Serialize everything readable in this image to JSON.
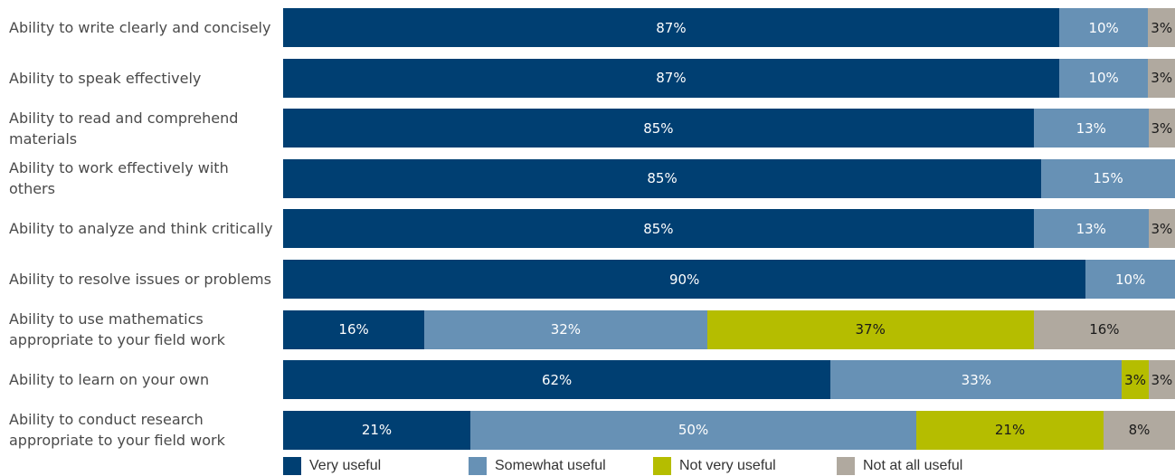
{
  "chart_data": {
    "type": "bar",
    "orientation": "horizontal",
    "stacked": true,
    "categories": [
      "Ability to write clearly and concisely",
      "Ability to speak effectively",
      "Ability to read and comprehend materials",
      "Ability to work effectively with others",
      "Ability to analyze and think critically",
      "Ability to resolve issues or problems",
      "Ability to use mathematics appropriate to your field work",
      "Ability to learn on your own",
      "Ability to conduct research appropriate to your field work"
    ],
    "series": [
      {
        "name": "Very useful",
        "color": "#003f72",
        "label_color": "#ffffff",
        "values": [
          87,
          87,
          85,
          85,
          85,
          90,
          16,
          62,
          21
        ]
      },
      {
        "name": "Somewhat useful",
        "color": "#6791b5",
        "label_color": "#ffffff",
        "values": [
          10,
          10,
          13,
          15,
          13,
          10,
          32,
          33,
          50
        ]
      },
      {
        "name": "Not very useful",
        "color": "#b5bd00",
        "label_color": "#1a1a1a",
        "values": [
          0,
          0,
          0,
          0,
          0,
          0,
          37,
          3,
          21
        ]
      },
      {
        "name": "Not at all useful",
        "color": "#b0a99f",
        "label_color": "#1a1a1a",
        "values": [
          3,
          3,
          3,
          0,
          3,
          0,
          16,
          3,
          8
        ]
      }
    ],
    "value_suffix": "%",
    "legend_position": "bottom",
    "grid": false,
    "title": "",
    "xlabel": "",
    "ylabel": ""
  }
}
